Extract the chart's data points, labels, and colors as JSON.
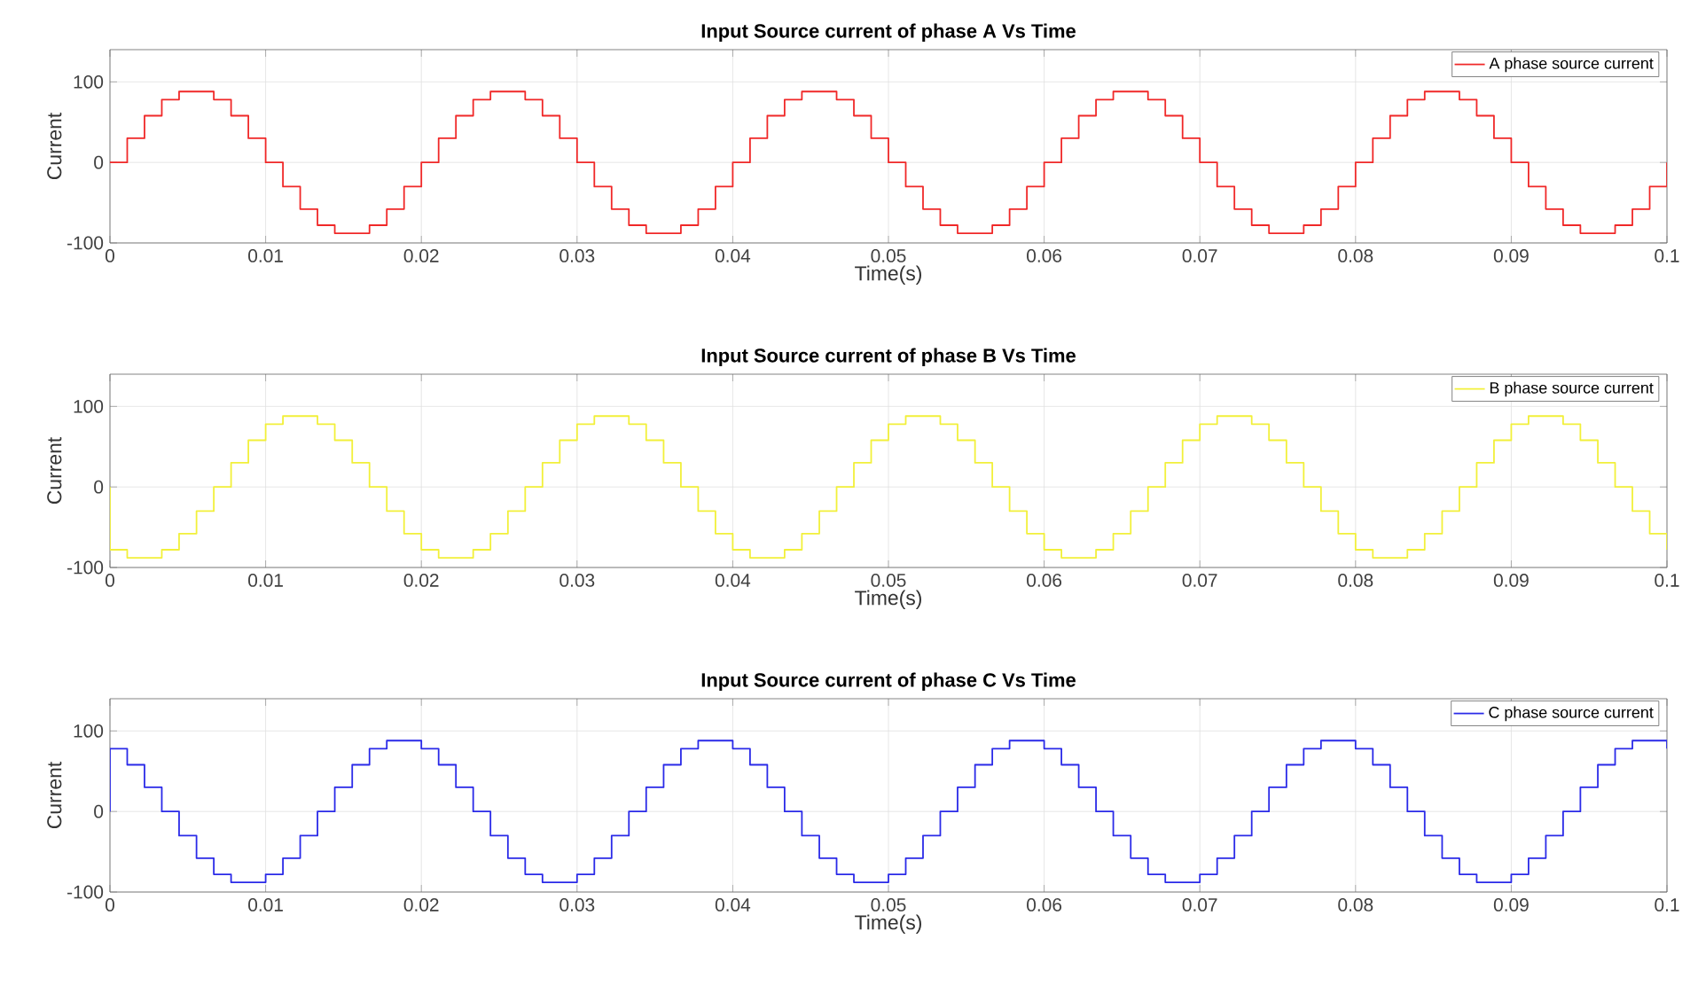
{
  "chart_data": [
    {
      "type": "step",
      "title": "Input Source current of phase A Vs Time",
      "xlabel": "Time(s)",
      "ylabel": "Current",
      "xlim": [
        0,
        0.1
      ],
      "ylim": [
        -100,
        140
      ],
      "xticks": [
        0,
        0.01,
        0.02,
        0.03,
        0.04,
        0.05,
        0.06,
        0.07,
        0.08,
        0.09,
        0.1
      ],
      "yticks": [
        -100,
        0,
        100
      ],
      "grid": true,
      "legend": "top right",
      "series": [
        {
          "name": "A phase source current",
          "color": "#f02828",
          "x": [
            0,
            0.00111,
            0.00222,
            0.00333,
            0.00444,
            0.00556,
            0.00667,
            0.00778,
            0.00889,
            0.01,
            0.01111,
            0.01222,
            0.01333,
            0.01444,
            0.01556,
            0.01667,
            0.01778,
            0.01889,
            0.02,
            0.02111,
            0.02222,
            0.02333,
            0.02444,
            0.02556,
            0.02667,
            0.02778,
            0.02889,
            0.03,
            0.03111,
            0.03222,
            0.03333,
            0.03444,
            0.03556,
            0.03667,
            0.03778,
            0.03889,
            0.04,
            0.04111,
            0.04222,
            0.04333,
            0.04444,
            0.04556,
            0.04667,
            0.04778,
            0.04889,
            0.05,
            0.05111,
            0.05222,
            0.05333,
            0.05444,
            0.05556,
            0.05667,
            0.05778,
            0.05889,
            0.06,
            0.06111,
            0.06222,
            0.06333,
            0.06444,
            0.06556,
            0.06667,
            0.06778,
            0.06889,
            0.07,
            0.07111,
            0.07222,
            0.07333,
            0.07444,
            0.07556,
            0.07667,
            0.07778,
            0.07889,
            0.08,
            0.08111,
            0.08222,
            0.08333,
            0.08444,
            0.08556,
            0.08667,
            0.08778,
            0.08889,
            0.09,
            0.09111,
            0.09222,
            0.09333,
            0.09444,
            0.09556,
            0.09667,
            0.09778,
            0.09889,
            0.1
          ],
          "values": [
            0,
            30,
            58,
            78,
            88,
            88,
            78,
            58,
            30,
            0,
            -30,
            -58,
            -78,
            -88,
            -88,
            -78,
            -58,
            -30,
            0,
            30,
            58,
            78,
            88,
            88,
            78,
            58,
            30,
            0,
            -30,
            -58,
            -78,
            -88,
            -88,
            -78,
            -58,
            -30,
            0,
            30,
            58,
            78,
            88,
            88,
            78,
            58,
            30,
            0,
            -30,
            -58,
            -78,
            -88,
            -88,
            -78,
            -58,
            -30,
            0,
            30,
            58,
            78,
            88,
            88,
            78,
            58,
            30,
            0,
            -30,
            -58,
            -78,
            -88,
            -88,
            -78,
            -58,
            -30,
            0,
            30,
            58,
            78,
            88,
            88,
            78,
            58,
            30,
            0,
            -30,
            -58,
            -78,
            -88,
            -88,
            -78,
            -58,
            -30,
            0
          ]
        }
      ]
    },
    {
      "type": "step",
      "title": "Input Source current of phase B Vs Time",
      "xlabel": "Time(s)",
      "ylabel": "Current",
      "xlim": [
        0,
        0.1
      ],
      "ylim": [
        -100,
        140
      ],
      "xticks": [
        0,
        0.01,
        0.02,
        0.03,
        0.04,
        0.05,
        0.06,
        0.07,
        0.08,
        0.09,
        0.1
      ],
      "yticks": [
        -100,
        0,
        100
      ],
      "grid": true,
      "legend": "top right",
      "series": [
        {
          "name": "B phase source current",
          "color": "#f2f03a",
          "x": [
            0,
            0,
            0.00111,
            0.00222,
            0.00333,
            0.00444,
            0.00556,
            0.00667,
            0.00778,
            0.00889,
            0.01,
            0.01111,
            0.01222,
            0.01333,
            0.01444,
            0.01556,
            0.01667,
            0.01778,
            0.01889,
            0.02,
            0.02111,
            0.02222,
            0.02333,
            0.02444,
            0.02556,
            0.02667,
            0.02778,
            0.02889,
            0.03,
            0.03111,
            0.03222,
            0.03333,
            0.03444,
            0.03556,
            0.03667,
            0.03778,
            0.03889,
            0.04,
            0.04111,
            0.04222,
            0.04333,
            0.04444,
            0.04556,
            0.04667,
            0.04778,
            0.04889,
            0.05,
            0.05111,
            0.05222,
            0.05333,
            0.05444,
            0.05556,
            0.05667,
            0.05778,
            0.05889,
            0.06,
            0.06111,
            0.06222,
            0.06333,
            0.06444,
            0.06556,
            0.06667,
            0.06778,
            0.06889,
            0.07,
            0.07111,
            0.07222,
            0.07333,
            0.07444,
            0.07556,
            0.07667,
            0.07778,
            0.07889,
            0.08,
            0.08111,
            0.08222,
            0.08333,
            0.08444,
            0.08556,
            0.08667,
            0.08778,
            0.08889,
            0.09,
            0.09111,
            0.09222,
            0.09333,
            0.09444,
            0.09556,
            0.09667,
            0.09778,
            0.09889,
            0.1
          ],
          "values": [
            0,
            -78,
            -88,
            -88,
            -78,
            -58,
            -30,
            0,
            30,
            58,
            78,
            88,
            88,
            78,
            58,
            30,
            0,
            -30,
            -58,
            -78,
            -88,
            -88,
            -78,
            -58,
            -30,
            0,
            30,
            58,
            78,
            88,
            88,
            78,
            58,
            30,
            0,
            -30,
            -58,
            -78,
            -88,
            -88,
            -78,
            -58,
            -30,
            0,
            30,
            58,
            78,
            88,
            88,
            78,
            58,
            30,
            0,
            -30,
            -58,
            -78,
            -88,
            -88,
            -78,
            -58,
            -30,
            0,
            30,
            58,
            78,
            88,
            88,
            78,
            58,
            30,
            0,
            -30,
            -58,
            -78,
            -88,
            -88,
            -78,
            -58,
            -30,
            0,
            30,
            58,
            78,
            88,
            88,
            78,
            58,
            30,
            0,
            -30,
            -58,
            -78
          ]
        }
      ]
    },
    {
      "type": "step",
      "title": "Input Source current of phase C Vs Time",
      "xlabel": "Time(s)",
      "ylabel": "Current",
      "xlim": [
        0,
        0.1
      ],
      "ylim": [
        -100,
        140
      ],
      "xticks": [
        0,
        0.01,
        0.02,
        0.03,
        0.04,
        0.05,
        0.06,
        0.07,
        0.08,
        0.09,
        0.1
      ],
      "yticks": [
        -100,
        0,
        100
      ],
      "grid": true,
      "legend": "top right",
      "series": [
        {
          "name": "C phase source current",
          "color": "#2a2ae8",
          "x": [
            0,
            0,
            0.00111,
            0.00222,
            0.00333,
            0.00444,
            0.00556,
            0.00667,
            0.00778,
            0.00889,
            0.01,
            0.01111,
            0.01222,
            0.01333,
            0.01444,
            0.01556,
            0.01667,
            0.01778,
            0.01889,
            0.02,
            0.02111,
            0.02222,
            0.02333,
            0.02444,
            0.02556,
            0.02667,
            0.02778,
            0.02889,
            0.03,
            0.03111,
            0.03222,
            0.03333,
            0.03444,
            0.03556,
            0.03667,
            0.03778,
            0.03889,
            0.04,
            0.04111,
            0.04222,
            0.04333,
            0.04444,
            0.04556,
            0.04667,
            0.04778,
            0.04889,
            0.05,
            0.05111,
            0.05222,
            0.05333,
            0.05444,
            0.05556,
            0.05667,
            0.05778,
            0.05889,
            0.06,
            0.06111,
            0.06222,
            0.06333,
            0.06444,
            0.06556,
            0.06667,
            0.06778,
            0.06889,
            0.07,
            0.07111,
            0.07222,
            0.07333,
            0.07444,
            0.07556,
            0.07667,
            0.07778,
            0.07889,
            0.08,
            0.08111,
            0.08222,
            0.08333,
            0.08444,
            0.08556,
            0.08667,
            0.08778,
            0.08889,
            0.09,
            0.09111,
            0.09222,
            0.09333,
            0.09444,
            0.09556,
            0.09667,
            0.09778,
            0.09889,
            0.1
          ],
          "values": [
            0,
            78,
            58,
            30,
            0,
            -30,
            -58,
            -78,
            -88,
            -88,
            -78,
            -58,
            -30,
            0,
            30,
            58,
            78,
            88,
            88,
            78,
            58,
            30,
            0,
            -30,
            -58,
            -78,
            -88,
            -88,
            -78,
            -58,
            -30,
            0,
            30,
            58,
            78,
            88,
            88,
            78,
            58,
            30,
            0,
            -30,
            -58,
            -78,
            -88,
            -88,
            -78,
            -58,
            -30,
            0,
            30,
            58,
            78,
            88,
            88,
            78,
            58,
            30,
            0,
            -30,
            -58,
            -78,
            -88,
            -88,
            -78,
            -58,
            -30,
            0,
            30,
            58,
            78,
            88,
            88,
            78,
            58,
            30,
            0,
            -30,
            -58,
            -78,
            -88,
            -88,
            -78,
            -58,
            -30,
            0,
            30,
            58,
            78,
            88,
            88,
            78
          ]
        }
      ]
    }
  ]
}
